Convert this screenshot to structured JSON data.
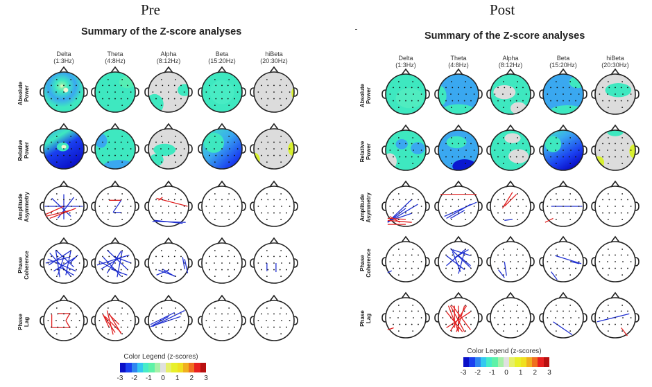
{
  "panels": [
    {
      "id": "pre",
      "title": "Pre",
      "summary_title": "Summary of the Z-score analyses"
    },
    {
      "id": "post",
      "title": "Post",
      "summary_title": "Summary of the Z-score analyses"
    }
  ],
  "columns": [
    {
      "name": "Delta",
      "range": "(1:3Hz)"
    },
    {
      "name": "Theta",
      "range": "(4:8Hz)"
    },
    {
      "name": "Alpha",
      "range": "(8:12Hz)"
    },
    {
      "name": "Beta",
      "range": "(15:20Hz)"
    },
    {
      "name": "hiBeta",
      "range": "(20:30Hz)"
    }
  ],
  "rows": [
    {
      "line1": "Absolute",
      "line2": "Power"
    },
    {
      "line1": "Relative",
      "line2": "Power"
    },
    {
      "line1": "Amplitude",
      "line2": "Asymmetry"
    },
    {
      "line1": "Phase",
      "line2": "Coherence"
    },
    {
      "line1": "Phase",
      "line2": "Lag"
    }
  ],
  "legend": {
    "title": "Color Legend (z-scores)",
    "ticks": [
      "-3",
      "-2",
      "-1",
      "0",
      "1",
      "2",
      "3"
    ],
    "colors": [
      "#0a10c8",
      "#1a40f0",
      "#2f86f0",
      "#34c8f0",
      "#46ecc8",
      "#5ef2a8",
      "#a8f0a8",
      "#e0e0e0",
      "#e6f06a",
      "#e8f02a",
      "#f0e020",
      "#f0b020",
      "#f07020",
      "#e82020",
      "#b81010"
    ]
  },
  "colors": {
    "positive_line": "#e02020",
    "negative_line": "#2030d0",
    "head_outline": "#222222",
    "zero_fill": "#dcdcdc",
    "minus1_fill": "#3ee8c0",
    "minus2_fill": "#3aa8f0",
    "minus3_fill": "#0a18d0",
    "plus_fill": "#d8f030"
  }
}
